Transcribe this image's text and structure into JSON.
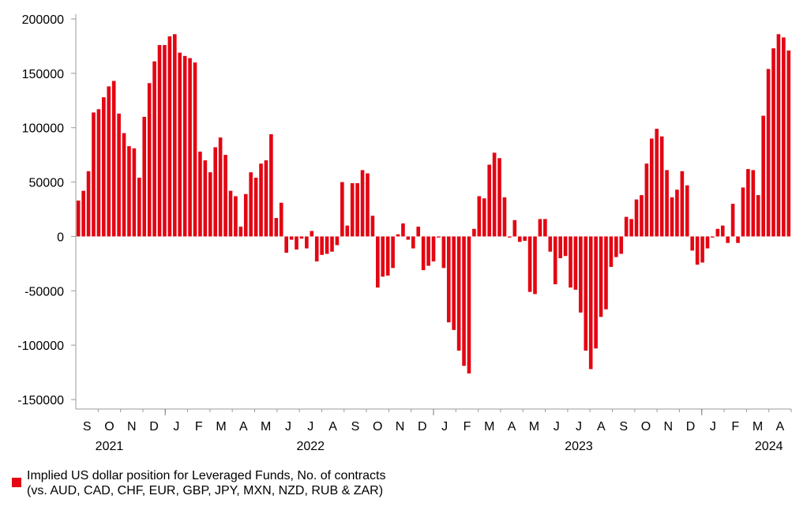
{
  "chart_data": {
    "type": "bar",
    "ylim": [
      -150000,
      200000
    ],
    "y_ticks": [
      200000,
      150000,
      100000,
      50000,
      0,
      -50000,
      -100000,
      -150000
    ],
    "y_tick_labels": [
      "200000",
      "150000",
      "100000",
      "50000",
      "0",
      "-50000",
      "-100000",
      "-150000"
    ],
    "month_labels": [
      "S",
      "O",
      "N",
      "D",
      "J",
      "F",
      "M",
      "A",
      "M",
      "J",
      "J",
      "A",
      "S",
      "O",
      "N",
      "D",
      "J",
      "F",
      "M",
      "A",
      "M",
      "J",
      "J",
      "A",
      "S",
      "O",
      "N",
      "D",
      "J",
      "F",
      "M",
      "A"
    ],
    "year_labels": [
      "2021",
      "2022",
      "2023",
      "2024"
    ],
    "grid": false,
    "legend_position": "bottom-left",
    "series": [
      {
        "name": "Implied US dollar position for Leveraged Funds, No. of contracts",
        "name_line2": "(vs. AUD, CAD, CHF, EUR, GBP, JPY, MXN, NZD, RUB & ZAR)",
        "color": "#e30613",
        "values": [
          33000,
          42000,
          60000,
          114000,
          117000,
          128000,
          138000,
          143000,
          113000,
          95000,
          83000,
          81000,
          54000,
          110000,
          141000,
          161000,
          176000,
          176000,
          184000,
          186000,
          169000,
          166000,
          164000,
          160000,
          78000,
          70000,
          59000,
          82000,
          91000,
          75000,
          42000,
          37000,
          9000,
          39000,
          59000,
          54000,
          67000,
          70000,
          94000,
          17000,
          31000,
          -15000,
          -3000,
          -12000,
          -2000,
          -11000,
          5000,
          -23000,
          -17000,
          -16000,
          -14000,
          -8000,
          50000,
          10000,
          49000,
          49000,
          61000,
          58000,
          19000,
          -47000,
          -37000,
          -36000,
          -29000,
          2000,
          12000,
          -3000,
          -11000,
          9000,
          -31000,
          -27000,
          -23000,
          -1000,
          -29000,
          -79000,
          -86000,
          -105000,
          -119000,
          -126000,
          7000,
          37000,
          35000,
          66000,
          77000,
          72000,
          36000,
          -1000,
          15000,
          -5000,
          -4000,
          -51000,
          -53000,
          16000,
          16000,
          -14000,
          -44000,
          -20000,
          -18000,
          -47000,
          -49000,
          -70000,
          -105000,
          -122000,
          -103000,
          -74000,
          -67000,
          -28000,
          -19000,
          -16000,
          18000,
          16000,
          34000,
          38000,
          67000,
          90000,
          99000,
          92000,
          61000,
          36000,
          43000,
          60000,
          47000,
          -13000,
          -26000,
          -24000,
          -11000,
          -1000,
          7000,
          10000,
          -6000,
          30000,
          -6000,
          45000,
          62000,
          61000,
          38000,
          111000,
          154000,
          173000,
          186000,
          183000,
          171000
        ]
      }
    ]
  }
}
